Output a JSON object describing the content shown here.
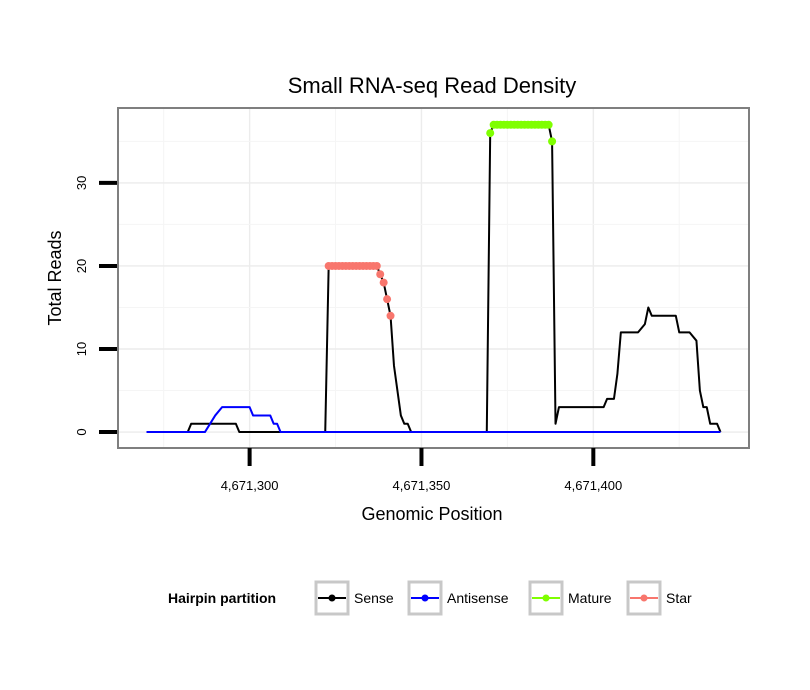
{
  "chart_data": {
    "type": "line",
    "title": "Small RNA-seq Read Density",
    "xlabel": "Genomic Position",
    "ylabel": "Total Reads",
    "xlim": [
      4671262,
      4671445
    ],
    "ylim": [
      -1.8,
      38.9
    ],
    "x_ticks": [
      4671300,
      4671350,
      4671400
    ],
    "x_tick_labels": [
      "4,671,300",
      "4,671,350",
      "4,671,400"
    ],
    "y_ticks": [
      0,
      10,
      20,
      30
    ],
    "y_tick_labels": [
      "0",
      "10",
      "20",
      "30"
    ],
    "grid": true,
    "legend": {
      "title": "Hairpin partition",
      "position": "bottom",
      "entries": [
        {
          "name": "Sense",
          "color": "#000000"
        },
        {
          "name": "Antisense",
          "color": "#0000FF"
        },
        {
          "name": "Mature",
          "color": "#7FFF00"
        },
        {
          "name": "Star",
          "color": "#F8766D"
        }
      ]
    },
    "series": [
      {
        "name": "Sense",
        "color": "#000000",
        "points": [
          [
            4671270,
            0
          ],
          [
            4671282,
            0
          ],
          [
            4671283,
            1
          ],
          [
            4671296,
            1
          ],
          [
            4671297,
            0
          ],
          [
            4671322,
            0
          ],
          [
            4671323,
            20
          ],
          [
            4671337,
            20
          ],
          [
            4671338,
            19
          ],
          [
            4671339,
            18
          ],
          [
            4671340,
            16
          ],
          [
            4671341,
            14
          ],
          [
            4671342,
            8
          ],
          [
            4671344,
            2
          ],
          [
            4671345,
            1
          ],
          [
            4671346,
            1
          ],
          [
            4671347,
            0
          ],
          [
            4671369,
            0
          ],
          [
            4671370,
            36
          ],
          [
            4671371,
            37
          ],
          [
            4671387,
            37
          ],
          [
            4671388,
            35
          ],
          [
            4671389,
            1
          ],
          [
            4671390,
            3
          ],
          [
            4671403,
            3
          ],
          [
            4671404,
            4
          ],
          [
            4671406,
            4
          ],
          [
            4671407,
            7
          ],
          [
            4671408,
            12
          ],
          [
            4671413,
            12
          ],
          [
            4671415,
            13
          ],
          [
            4671416,
            15
          ],
          [
            4671417,
            14
          ],
          [
            4671424,
            14
          ],
          [
            4671425,
            12
          ],
          [
            4671428,
            12
          ],
          [
            4671430,
            11
          ],
          [
            4671431,
            5
          ],
          [
            4671432,
            3
          ],
          [
            4671433,
            3
          ],
          [
            4671434,
            1
          ],
          [
            4671436,
            1
          ],
          [
            4671437,
            0
          ]
        ]
      },
      {
        "name": "Antisense",
        "color": "#0000FF",
        "points": [
          [
            4671270,
            0
          ],
          [
            4671287,
            0
          ],
          [
            4671290,
            2
          ],
          [
            4671292,
            3
          ],
          [
            4671300,
            3
          ],
          [
            4671301,
            2
          ],
          [
            4671306,
            2
          ],
          [
            4671307,
            1
          ],
          [
            4671308,
            1
          ],
          [
            4671309,
            0
          ],
          [
            4671437,
            0
          ]
        ]
      },
      {
        "name": "Mature",
        "color": "#7FFF00",
        "points": [
          [
            4671370,
            36
          ],
          [
            4671371,
            37
          ],
          [
            4671372,
            37
          ],
          [
            4671373,
            37
          ],
          [
            4671374,
            37
          ],
          [
            4671375,
            37
          ],
          [
            4671376,
            37
          ],
          [
            4671377,
            37
          ],
          [
            4671378,
            37
          ],
          [
            4671379,
            37
          ],
          [
            4671380,
            37
          ],
          [
            4671381,
            37
          ],
          [
            4671382,
            37
          ],
          [
            4671383,
            37
          ],
          [
            4671384,
            37
          ],
          [
            4671385,
            37
          ],
          [
            4671386,
            37
          ],
          [
            4671387,
            37
          ],
          [
            4671388,
            35
          ]
        ]
      },
      {
        "name": "Star",
        "color": "#F8766D",
        "points": [
          [
            4671323,
            20
          ],
          [
            4671324,
            20
          ],
          [
            4671325,
            20
          ],
          [
            4671326,
            20
          ],
          [
            4671327,
            20
          ],
          [
            4671328,
            20
          ],
          [
            4671329,
            20
          ],
          [
            4671330,
            20
          ],
          [
            4671331,
            20
          ],
          [
            4671332,
            20
          ],
          [
            4671333,
            20
          ],
          [
            4671334,
            20
          ],
          [
            4671335,
            20
          ],
          [
            4671336,
            20
          ],
          [
            4671337,
            20
          ],
          [
            4671338,
            19
          ],
          [
            4671339,
            18
          ],
          [
            4671340,
            16
          ],
          [
            4671341,
            14
          ]
        ]
      }
    ]
  }
}
